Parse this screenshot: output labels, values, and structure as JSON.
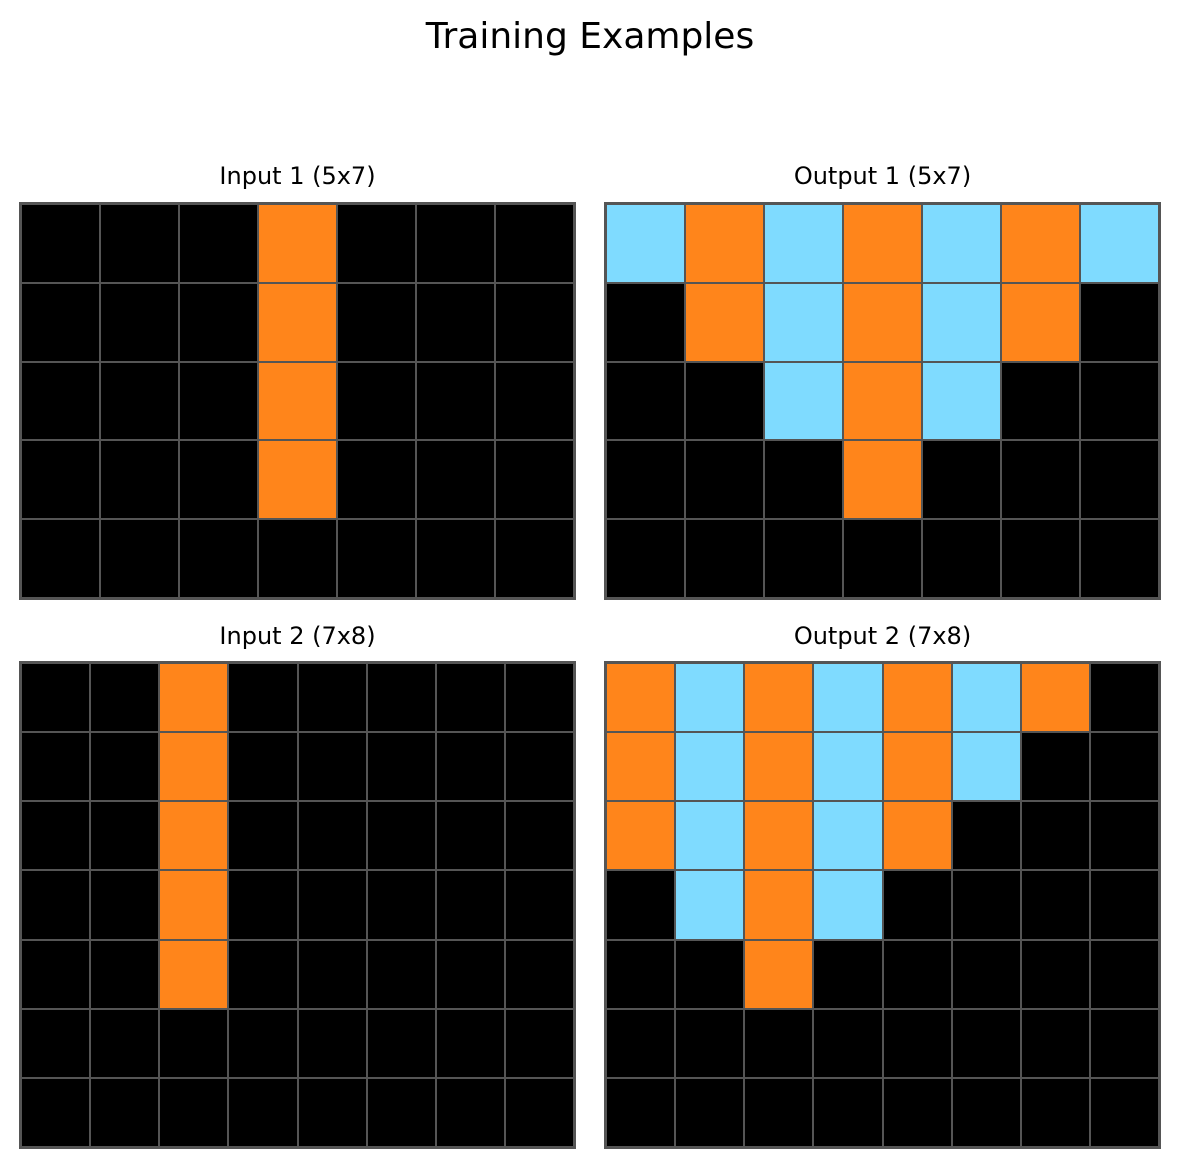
{
  "title": "Training Examples",
  "palette": {
    "0": "#000000",
    "7": "#FF851B",
    "8": "#7FDBFF"
  },
  "grid_line_color": "#555555",
  "panels": [
    {
      "title": "Input 1 (5x7)",
      "rows": 5,
      "cols": 7,
      "cells": [
        [
          0,
          0,
          0,
          7,
          0,
          0,
          0
        ],
        [
          0,
          0,
          0,
          7,
          0,
          0,
          0
        ],
        [
          0,
          0,
          0,
          7,
          0,
          0,
          0
        ],
        [
          0,
          0,
          0,
          7,
          0,
          0,
          0
        ],
        [
          0,
          0,
          0,
          0,
          0,
          0,
          0
        ]
      ]
    },
    {
      "title": "Output 1 (5x7)",
      "rows": 5,
      "cols": 7,
      "cells": [
        [
          8,
          7,
          8,
          7,
          8,
          7,
          8
        ],
        [
          0,
          7,
          8,
          7,
          8,
          7,
          0
        ],
        [
          0,
          0,
          8,
          7,
          8,
          0,
          0
        ],
        [
          0,
          0,
          0,
          7,
          0,
          0,
          0
        ],
        [
          0,
          0,
          0,
          0,
          0,
          0,
          0
        ]
      ]
    },
    {
      "title": "Input 2 (7x8)",
      "rows": 7,
      "cols": 8,
      "cells": [
        [
          0,
          0,
          7,
          0,
          0,
          0,
          0,
          0
        ],
        [
          0,
          0,
          7,
          0,
          0,
          0,
          0,
          0
        ],
        [
          0,
          0,
          7,
          0,
          0,
          0,
          0,
          0
        ],
        [
          0,
          0,
          7,
          0,
          0,
          0,
          0,
          0
        ],
        [
          0,
          0,
          7,
          0,
          0,
          0,
          0,
          0
        ],
        [
          0,
          0,
          0,
          0,
          0,
          0,
          0,
          0
        ],
        [
          0,
          0,
          0,
          0,
          0,
          0,
          0,
          0
        ]
      ]
    },
    {
      "title": "Output 2 (7x8)",
      "rows": 7,
      "cols": 8,
      "cells": [
        [
          7,
          8,
          7,
          8,
          7,
          8,
          7,
          0
        ],
        [
          7,
          8,
          7,
          8,
          7,
          8,
          0,
          0
        ],
        [
          7,
          8,
          7,
          8,
          7,
          0,
          0,
          0
        ],
        [
          0,
          8,
          7,
          8,
          0,
          0,
          0,
          0
        ],
        [
          0,
          0,
          7,
          0,
          0,
          0,
          0,
          0
        ],
        [
          0,
          0,
          0,
          0,
          0,
          0,
          0,
          0
        ],
        [
          0,
          0,
          0,
          0,
          0,
          0,
          0,
          0
        ]
      ]
    }
  ]
}
